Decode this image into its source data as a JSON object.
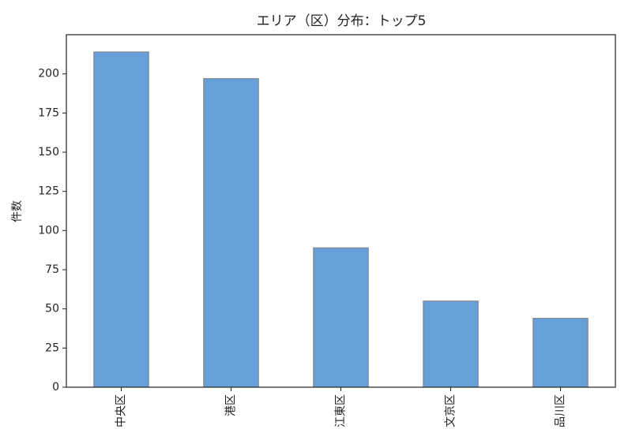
{
  "chart_data": {
    "type": "bar",
    "title": "エリア（区）分布：トップ5",
    "y_label": "件数",
    "categories": [
      "中央区",
      "港区",
      "江東区",
      "文京区",
      "品川区"
    ],
    "values": [
      214,
      197,
      89,
      55,
      44
    ],
    "color": "#679fd8",
    "ylim": [
      0,
      225
    ],
    "yticks": [
      0,
      25,
      50,
      75,
      100,
      125,
      150,
      175,
      200
    ],
    "grid": false
  }
}
